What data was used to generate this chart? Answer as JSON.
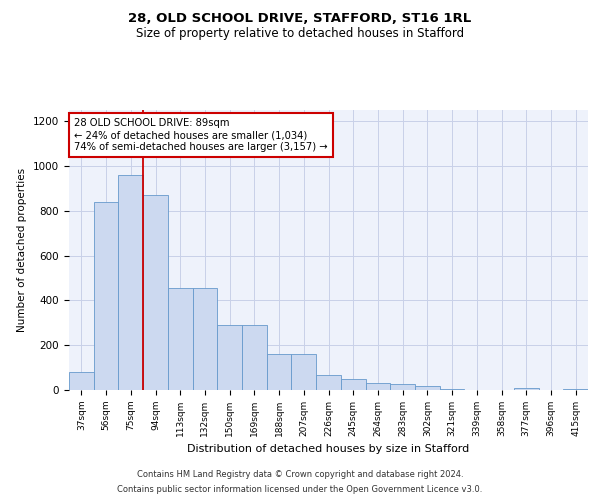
{
  "title1": "28, OLD SCHOOL DRIVE, STAFFORD, ST16 1RL",
  "title2": "Size of property relative to detached houses in Stafford",
  "xlabel": "Distribution of detached houses by size in Stafford",
  "ylabel": "Number of detached properties",
  "categories": [
    "37sqm",
    "56sqm",
    "75sqm",
    "94sqm",
    "113sqm",
    "132sqm",
    "150sqm",
    "169sqm",
    "188sqm",
    "207sqm",
    "226sqm",
    "245sqm",
    "264sqm",
    "283sqm",
    "302sqm",
    "321sqm",
    "339sqm",
    "358sqm",
    "377sqm",
    "396sqm",
    "415sqm"
  ],
  "values": [
    80,
    840,
    960,
    870,
    455,
    455,
    290,
    290,
    160,
    160,
    65,
    50,
    30,
    25,
    20,
    5,
    0,
    0,
    10,
    0,
    5
  ],
  "bar_color": "#ccd9f0",
  "bar_edge_color": "#6699cc",
  "red_line_after_index": 2,
  "annotation_text1": "28 OLD SCHOOL DRIVE: 89sqm",
  "annotation_text2": "← 24% of detached houses are smaller (1,034)",
  "annotation_text3": "74% of semi-detached houses are larger (3,157) →",
  "annotation_box_edge": "#cc0000",
  "ylim": [
    0,
    1250
  ],
  "yticks": [
    0,
    200,
    400,
    600,
    800,
    1000,
    1200
  ],
  "footer1": "Contains HM Land Registry data © Crown copyright and database right 2024.",
  "footer2": "Contains public sector information licensed under the Open Government Licence v3.0.",
  "bg_color": "#eef2fb",
  "grid_color": "#c8d0e8"
}
